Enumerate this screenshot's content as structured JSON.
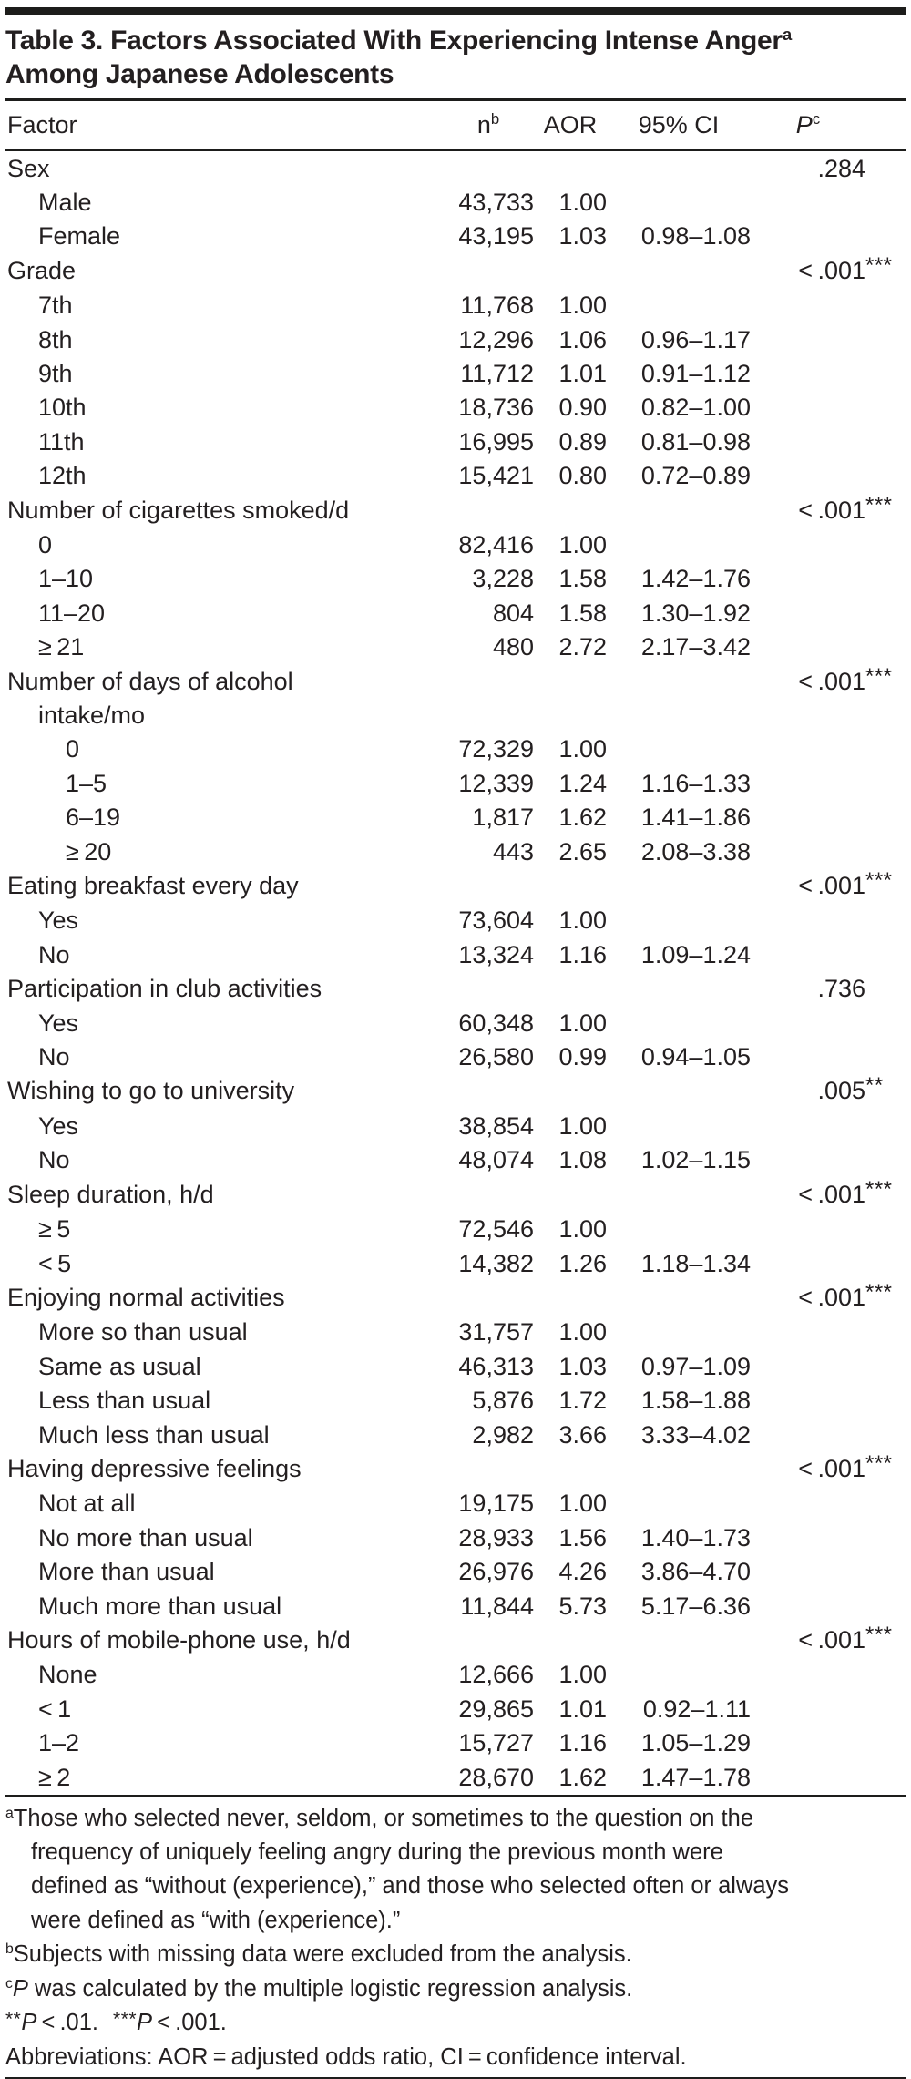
{
  "title": {
    "line1": "Table 3. Factors Associated With Experiencing Intense Anger",
    "line1_sup": "a",
    "line2": "Among Japanese Adolescents"
  },
  "header": {
    "factor": "Factor",
    "n": "n",
    "n_sup": "b",
    "aor": "AOR",
    "ci": "95% CI",
    "p": "P",
    "p_sup": "c"
  },
  "rows": [
    {
      "label": "Sex",
      "indent": 0,
      "p": ".284",
      "stars": ""
    },
    {
      "label": "Male",
      "indent": 1,
      "n": "43,733",
      "aor": "1.00",
      "ci": ""
    },
    {
      "label": "Female",
      "indent": 1,
      "n": "43,195",
      "aor": "1.03",
      "ci": "0.98–1.08"
    },
    {
      "label": "Grade",
      "indent": 0,
      "p": "< .001",
      "stars": "***"
    },
    {
      "label": "7th",
      "indent": 1,
      "n": "11,768",
      "aor": "1.00",
      "ci": ""
    },
    {
      "label": "8th",
      "indent": 1,
      "n": "12,296",
      "aor": "1.06",
      "ci": "0.96–1.17"
    },
    {
      "label": "9th",
      "indent": 1,
      "n": "11,712",
      "aor": "1.01",
      "ci": "0.91–1.12"
    },
    {
      "label": "10th",
      "indent": 1,
      "n": "18,736",
      "aor": "0.90",
      "ci": "0.82–1.00"
    },
    {
      "label": "11th",
      "indent": 1,
      "n": "16,995",
      "aor": "0.89",
      "ci": "0.81–0.98"
    },
    {
      "label": "12th",
      "indent": 1,
      "n": "15,421",
      "aor": "0.80",
      "ci": "0.72–0.89"
    },
    {
      "label": "Number of cigarettes smoked/d",
      "indent": 0,
      "p": "< .001",
      "stars": "***"
    },
    {
      "label": "0",
      "indent": 1,
      "n": "82,416",
      "aor": "1.00",
      "ci": ""
    },
    {
      "label": "1–10",
      "indent": 1,
      "n": "3,228",
      "aor": "1.58",
      "ci": "1.42–1.76"
    },
    {
      "label": "11–20",
      "indent": 1,
      "n": "804",
      "aor": "1.58",
      "ci": "1.30–1.92"
    },
    {
      "label": "≥ 21",
      "indent": 1,
      "n": "480",
      "aor": "2.72",
      "ci": "2.17–3.42"
    },
    {
      "label": "Number of days of alcohol",
      "label2": "intake/mo",
      "indent": 0,
      "p": "< .001",
      "stars": "***"
    },
    {
      "label": "0",
      "indent": 2,
      "n": "72,329",
      "aor": "1.00",
      "ci": ""
    },
    {
      "label": "1–5",
      "indent": 2,
      "n": "12,339",
      "aor": "1.24",
      "ci": "1.16–1.33"
    },
    {
      "label": "6–19",
      "indent": 2,
      "n": "1,817",
      "aor": "1.62",
      "ci": "1.41–1.86"
    },
    {
      "label": "≥ 20",
      "indent": 2,
      "n": "443",
      "aor": "2.65",
      "ci": "2.08–3.38"
    },
    {
      "label": "Eating breakfast every day",
      "indent": 0,
      "p": "< .001",
      "stars": "***"
    },
    {
      "label": "Yes",
      "indent": 1,
      "n": "73,604",
      "aor": "1.00",
      "ci": ""
    },
    {
      "label": "No",
      "indent": 1,
      "n": "13,324",
      "aor": "1.16",
      "ci": "1.09–1.24"
    },
    {
      "label": "Participation in club activities",
      "indent": 0,
      "p": ".736",
      "stars": ""
    },
    {
      "label": "Yes",
      "indent": 1,
      "n": "60,348",
      "aor": "1.00",
      "ci": ""
    },
    {
      "label": "No",
      "indent": 1,
      "n": "26,580",
      "aor": "0.99",
      "ci": "0.94–1.05"
    },
    {
      "label": "Wishing to go to university",
      "indent": 0,
      "p": ".005",
      "stars": "**"
    },
    {
      "label": "Yes",
      "indent": 1,
      "n": "38,854",
      "aor": "1.00",
      "ci": ""
    },
    {
      "label": "No",
      "indent": 1,
      "n": "48,074",
      "aor": "1.08",
      "ci": "1.02–1.15"
    },
    {
      "label": "Sleep duration, h/d",
      "indent": 0,
      "p": "< .001",
      "stars": "***"
    },
    {
      "label": "≥ 5",
      "indent": 1,
      "n": "72,546",
      "aor": "1.00",
      "ci": ""
    },
    {
      "label": "< 5",
      "indent": 1,
      "n": "14,382",
      "aor": "1.26",
      "ci": "1.18–1.34"
    },
    {
      "label": "Enjoying normal activities",
      "indent": 0,
      "p": "< .001",
      "stars": "***"
    },
    {
      "label": "More so than usual",
      "indent": 1,
      "n": "31,757",
      "aor": "1.00",
      "ci": ""
    },
    {
      "label": "Same as usual",
      "indent": 1,
      "n": "46,313",
      "aor": "1.03",
      "ci": "0.97–1.09"
    },
    {
      "label": "Less than usual",
      "indent": 1,
      "n": "5,876",
      "aor": "1.72",
      "ci": "1.58–1.88"
    },
    {
      "label": "Much less than usual",
      "indent": 1,
      "n": "2,982",
      "aor": "3.66",
      "ci": "3.33–4.02"
    },
    {
      "label": "Having depressive feelings",
      "indent": 0,
      "p": "< .001",
      "stars": "***"
    },
    {
      "label": "Not at all",
      "indent": 1,
      "n": "19,175",
      "aor": "1.00",
      "ci": ""
    },
    {
      "label": "No more than usual",
      "indent": 1,
      "n": "28,933",
      "aor": "1.56",
      "ci": "1.40–1.73"
    },
    {
      "label": "More than usual",
      "indent": 1,
      "n": "26,976",
      "aor": "4.26",
      "ci": "3.86–4.70"
    },
    {
      "label": "Much more than usual",
      "indent": 1,
      "n": "11,844",
      "aor": "5.73",
      "ci": "5.17–6.36"
    },
    {
      "label": "Hours of mobile-phone use, h/d",
      "indent": 0,
      "p": "< .001",
      "stars": "***"
    },
    {
      "label": "None",
      "indent": 1,
      "n": "12,666",
      "aor": "1.00",
      "ci": ""
    },
    {
      "label": "< 1",
      "indent": 1,
      "n": "29,865",
      "aor": "1.01",
      "ci": "0.92–1.11"
    },
    {
      "label": "1–2",
      "indent": 1,
      "n": "15,727",
      "aor": "1.16",
      "ci": "1.05–1.29"
    },
    {
      "label": "≥ 2",
      "indent": 1,
      "n": "28,670",
      "aor": "1.62",
      "ci": "1.47–1.78"
    }
  ],
  "footnotes": {
    "lines": [
      {
        "indent": false,
        "segs": [
          {
            "t": "sup",
            "v": "a"
          },
          {
            "t": "x",
            "v": "Those who selected never, seldom, or sometimes to the question on the"
          }
        ]
      },
      {
        "indent": true,
        "segs": [
          {
            "t": "x",
            "v": "frequency of uniquely feeling angry during the previous month were"
          }
        ]
      },
      {
        "indent": true,
        "segs": [
          {
            "t": "x",
            "v": "defined as “without (experience),” and those who selected often or always"
          }
        ]
      },
      {
        "indent": true,
        "segs": [
          {
            "t": "x",
            "v": "were defined as “with (experience).”"
          }
        ]
      },
      {
        "indent": false,
        "segs": [
          {
            "t": "sup",
            "v": "b"
          },
          {
            "t": "x",
            "v": "Subjects with missing data were excluded from the analysis."
          }
        ]
      },
      {
        "indent": false,
        "segs": [
          {
            "t": "sup",
            "v": "c"
          },
          {
            "t": "i",
            "v": "P"
          },
          {
            "t": "x",
            "v": " was calculated by the multiple logistic regression analysis."
          }
        ]
      },
      {
        "indent": false,
        "segs": [
          {
            "t": "s",
            "v": "**"
          },
          {
            "t": "i",
            "v": "P"
          },
          {
            "t": "x",
            "v": " < .01."
          },
          {
            "t": "g"
          },
          {
            "t": "s",
            "v": "***"
          },
          {
            "t": "i",
            "v": "P"
          },
          {
            "t": "x",
            "v": " < .001."
          }
        ]
      },
      {
        "indent": false,
        "segs": [
          {
            "t": "x",
            "v": "Abbreviations: AOR = adjusted odds ratio, CI = confidence interval."
          }
        ]
      }
    ]
  },
  "colors": {
    "ink": "#231f20",
    "rule": "#1d1d1b",
    "background": "#ffffff"
  }
}
